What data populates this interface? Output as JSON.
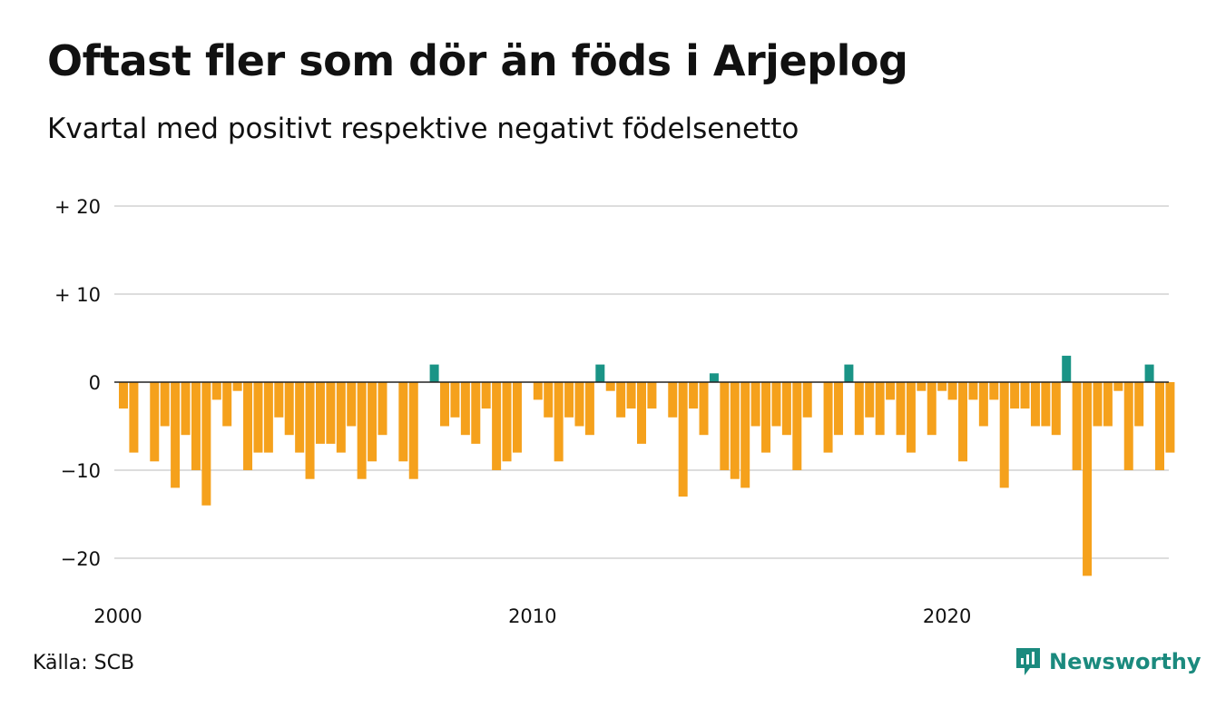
{
  "header": {
    "title": "Oftast fler som dör än föds i Arjeplog",
    "subtitle": "Kvartal med positivt respektive negativt födelsenetto"
  },
  "footer": {
    "source": "Källa: SCB",
    "brand": "Newsworthy"
  },
  "colors": {
    "negative": "#f5a11c",
    "positive": "#1a9486",
    "grid": "#dddddd",
    "zero_line": "#222222",
    "brand": "#1b8a7e"
  },
  "icons": {
    "brand_logo": "newsworthy-logo-icon"
  },
  "chart_data": {
    "type": "bar",
    "title": "Oftast fler som dör än föds i Arjeplog",
    "subtitle": "Kvartal med positivt respektive negativt födelsenetto",
    "xlabel": "",
    "ylabel": "",
    "ylim": [
      -24,
      21
    ],
    "yticks": [
      {
        "value": 20,
        "label": "+ 20"
      },
      {
        "value": 10,
        "label": "+ 10"
      },
      {
        "value": 0,
        "label": "0"
      },
      {
        "value": -10,
        "label": "−10"
      },
      {
        "value": -20,
        "label": "−20"
      }
    ],
    "xticks": [
      {
        "value": 2000,
        "label": "2000"
      },
      {
        "value": 2010,
        "label": "2010"
      },
      {
        "value": 2020,
        "label": "2020"
      }
    ],
    "grid": true,
    "start_period": "2000 Q1",
    "frequency": "quarterly",
    "values": [
      -3,
      -8,
      0,
      -9,
      -5,
      -12,
      -6,
      -10,
      -14,
      -2,
      -5,
      -1,
      -10,
      -8,
      -8,
      -4,
      -6,
      -8,
      -11,
      -7,
      -7,
      -8,
      -5,
      -11,
      -9,
      -6,
      0,
      -9,
      -11,
      0,
      2,
      -5,
      -4,
      -6,
      -7,
      -3,
      -10,
      -9,
      -8,
      0,
      -2,
      -4,
      -9,
      -4,
      -5,
      -6,
      2,
      -1,
      -4,
      -3,
      -7,
      -3,
      0,
      -4,
      -13,
      -3,
      -6,
      1,
      -10,
      -11,
      -12,
      -5,
      -8,
      -5,
      -6,
      -10,
      -4,
      0,
      -8,
      -6,
      2,
      -6,
      -4,
      -6,
      -2,
      -6,
      -8,
      -1,
      -6,
      -1,
      -2,
      -9,
      -2,
      -5,
      -2,
      -12,
      -3,
      -3,
      -5,
      -5,
      -6,
      3,
      -10,
      -22,
      -5,
      -5,
      -1,
      -10,
      -5,
      2,
      -10,
      -8
    ]
  }
}
